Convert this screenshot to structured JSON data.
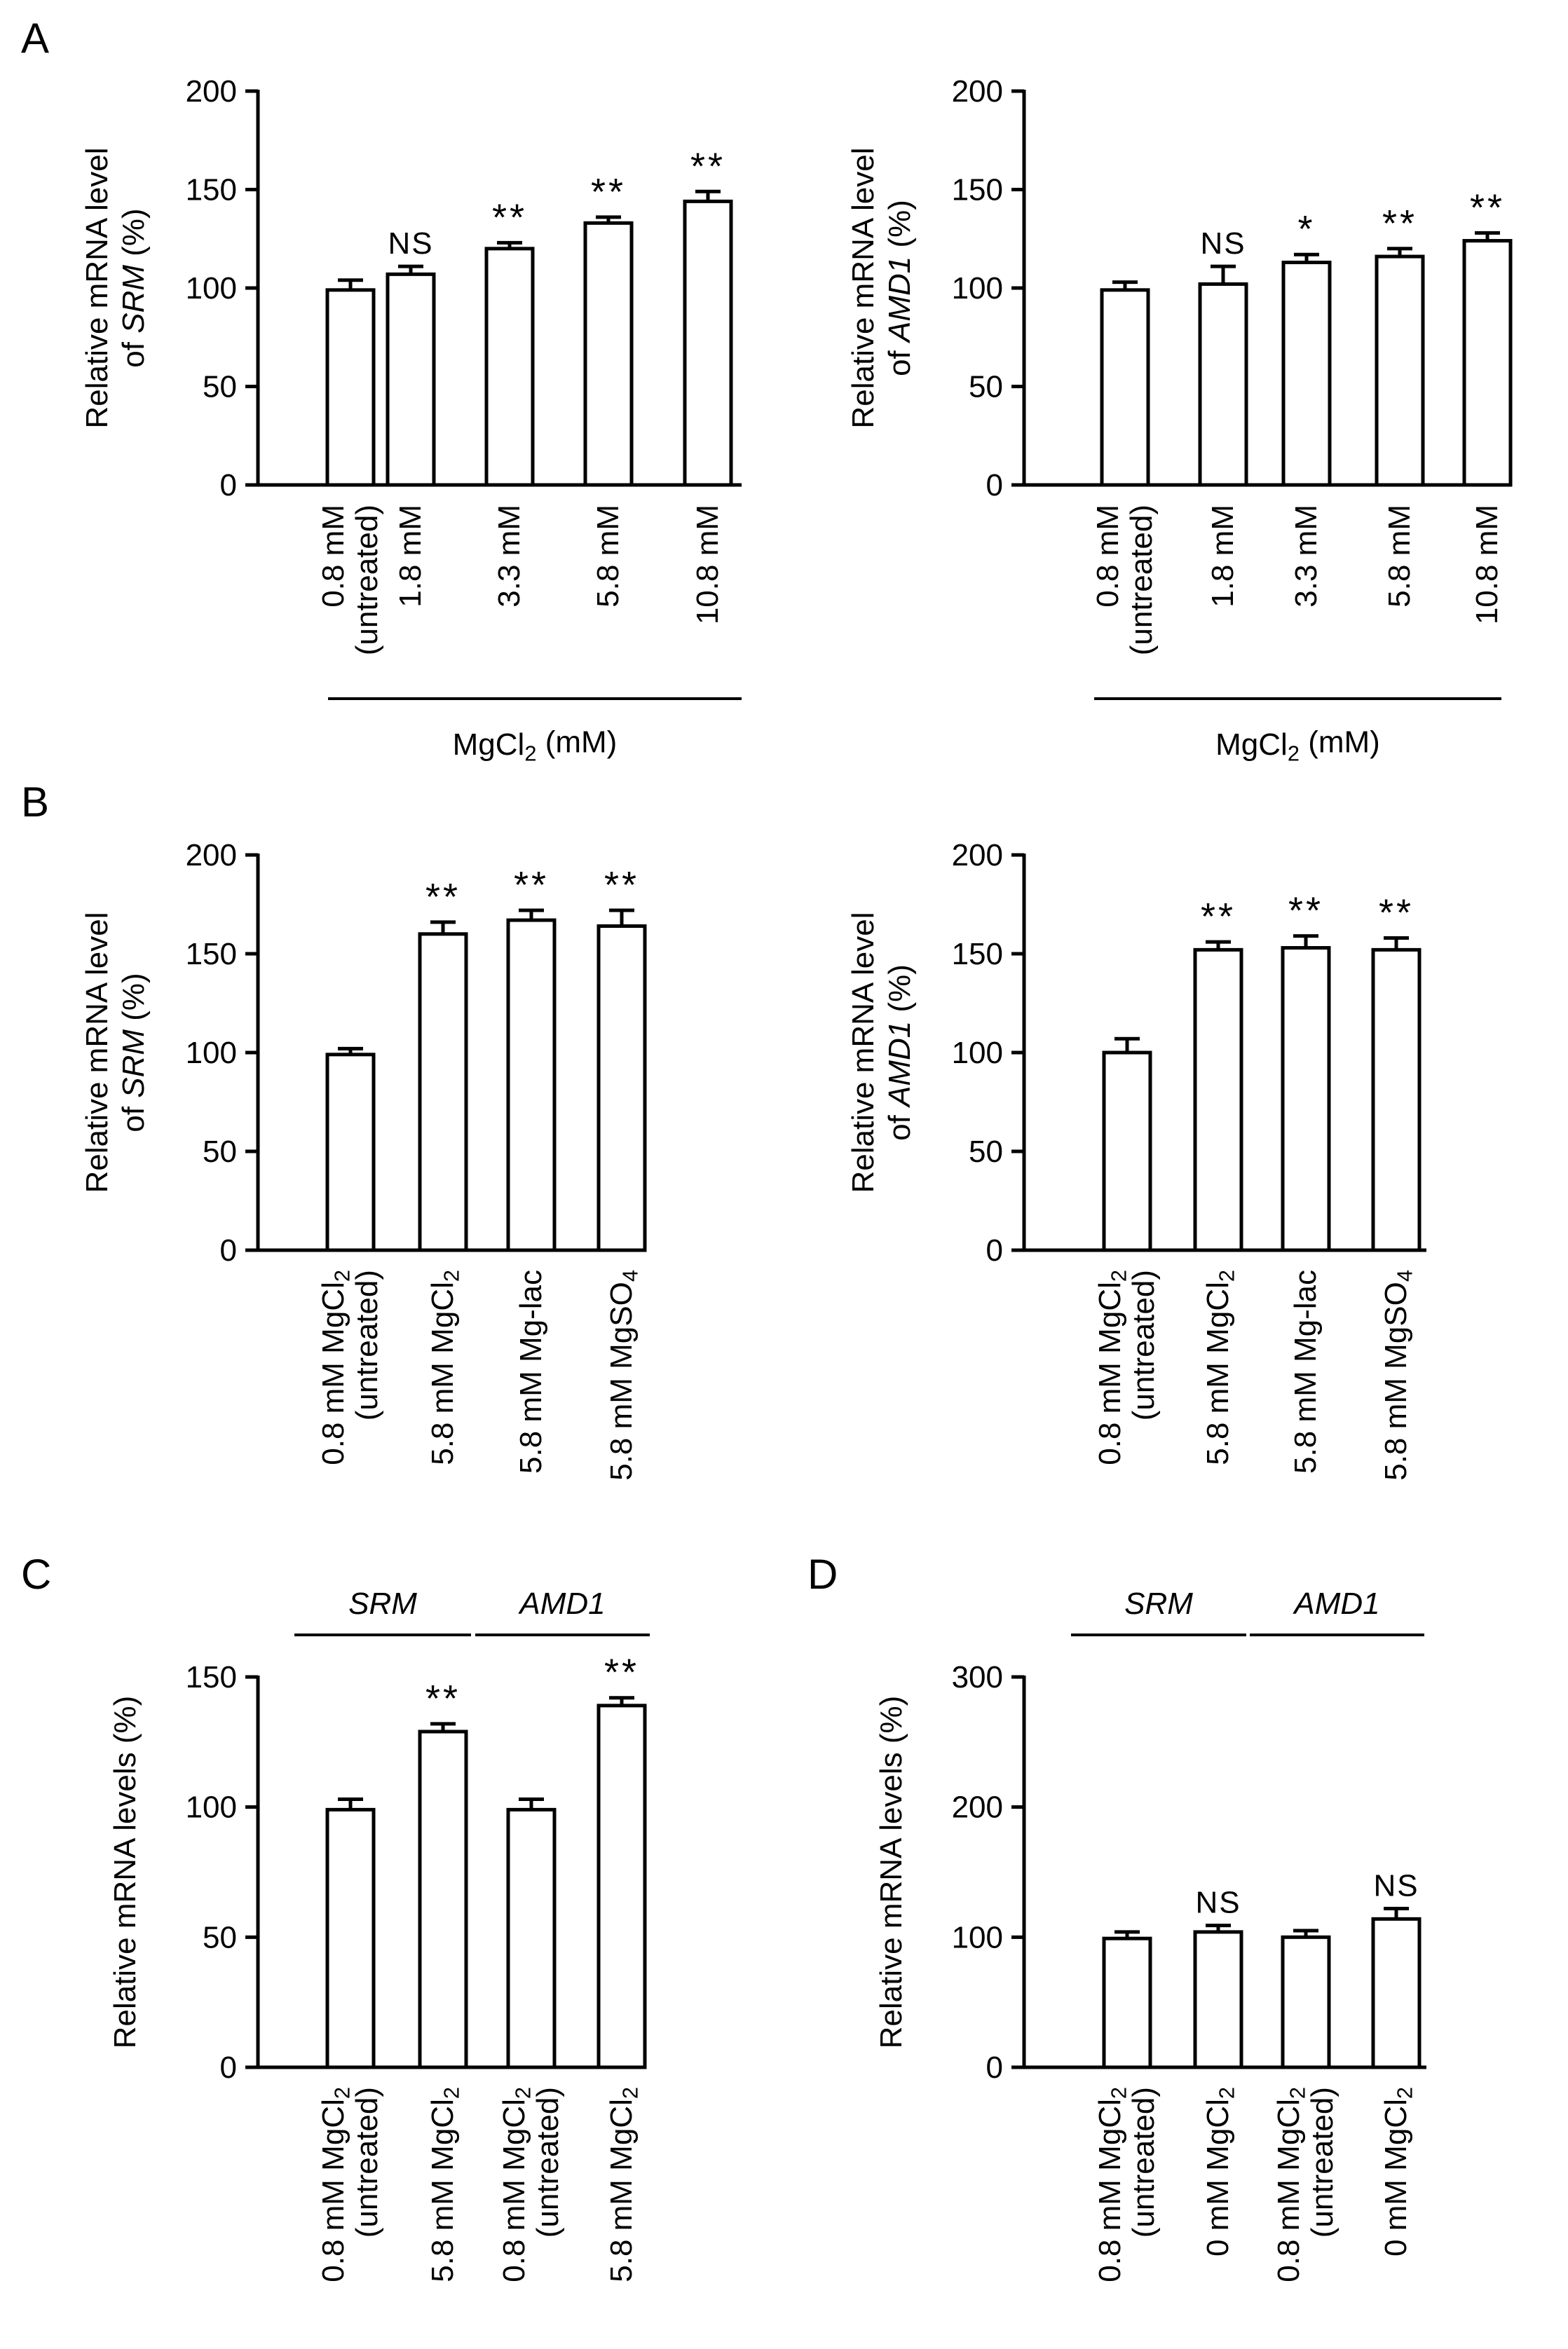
{
  "figure": {
    "panels": [
      {
        "letter": "A"
      },
      {
        "letter": "B"
      },
      {
        "letter": "C"
      },
      {
        "letter": "D"
      }
    ]
  },
  "chart_data": [
    {
      "panel": "A",
      "type": "bar",
      "ylabel_lines": [
        [
          "Relative mRNA level"
        ],
        [
          "of ",
          {
            "t": "SRM",
            "i": true
          },
          " (%)"
        ]
      ],
      "ylim": [
        0,
        200
      ],
      "yticks": [
        0,
        50,
        100,
        150,
        200
      ],
      "categories": [
        [
          "0.8 mM",
          "(untreated)"
        ],
        [
          "1.8 mM"
        ],
        [
          "3.3 mM"
        ],
        [
          "5.8 mM"
        ],
        [
          "10.8 mM"
        ]
      ],
      "values": [
        99,
        107,
        120,
        133,
        144
      ],
      "errors": [
        5,
        4,
        3,
        3,
        5
      ],
      "significance": [
        "",
        "NS",
        "**",
        "**",
        "**"
      ],
      "xgroup_label": [
        {
          "t": "MgCl"
        },
        {
          "t": "2",
          "sub": true
        },
        {
          "t": " (mM)"
        }
      ]
    },
    {
      "panel": "A",
      "type": "bar",
      "ylabel_lines": [
        [
          "Relative mRNA level"
        ],
        [
          "of ",
          {
            "t": "AMD1",
            "i": true
          },
          " (%)"
        ]
      ],
      "ylim": [
        0,
        200
      ],
      "yticks": [
        0,
        50,
        100,
        150,
        200
      ],
      "categories": [
        [
          "0.8 mM",
          "(untreated)"
        ],
        [
          "1.8 mM"
        ],
        [
          "3.3 mM"
        ],
        [
          "5.8 mM"
        ],
        [
          "10.8 mM"
        ]
      ],
      "values": [
        99,
        102,
        113,
        116,
        124
      ],
      "errors": [
        4,
        9,
        4,
        4,
        4
      ],
      "significance": [
        "",
        "NS",
        "*",
        "**",
        "**"
      ],
      "xgroup_label": [
        {
          "t": "MgCl"
        },
        {
          "t": "2",
          "sub": true
        },
        {
          "t": " (mM)"
        }
      ]
    },
    {
      "panel": "B",
      "type": "bar",
      "ylabel_lines": [
        [
          "Relative mRNA level"
        ],
        [
          "of ",
          {
            "t": "SRM",
            "i": true
          },
          " (%)"
        ]
      ],
      "ylim": [
        0,
        200
      ],
      "yticks": [
        0,
        50,
        100,
        150,
        200
      ],
      "categories": [
        [
          [
            {
              "t": "0.8 mM MgCl"
            },
            {
              "t": "2",
              "sub": true
            }
          ],
          [
            {
              "t": "(untreated)"
            }
          ]
        ],
        [
          [
            {
              "t": "5.8 mM MgCl"
            },
            {
              "t": "2",
              "sub": true
            }
          ]
        ],
        [
          [
            {
              "t": "5.8 mM Mg-lac"
            }
          ]
        ],
        [
          [
            {
              "t": "5.8 mM MgSO"
            },
            {
              "t": "4",
              "sub": true
            }
          ]
        ]
      ],
      "values": [
        99,
        160,
        167,
        164
      ],
      "errors": [
        3,
        6,
        5,
        8
      ],
      "significance": [
        "",
        "**",
        "**",
        "**"
      ]
    },
    {
      "panel": "B",
      "type": "bar",
      "ylabel_lines": [
        [
          "Relative mRNA level"
        ],
        [
          "of ",
          {
            "t": "AMD1",
            "i": true
          },
          " (%)"
        ]
      ],
      "ylim": [
        0,
        200
      ],
      "yticks": [
        0,
        50,
        100,
        150,
        200
      ],
      "categories": [
        [
          [
            {
              "t": "0.8 mM MgCl"
            },
            {
              "t": "2",
              "sub": true
            }
          ],
          [
            {
              "t": "(untreated)"
            }
          ]
        ],
        [
          [
            {
              "t": "5.8 mM MgCl"
            },
            {
              "t": "2",
              "sub": true
            }
          ]
        ],
        [
          [
            {
              "t": "5.8 mM Mg-lac"
            }
          ]
        ],
        [
          [
            {
              "t": "5.8 mM MgSO"
            },
            {
              "t": "4",
              "sub": true
            }
          ]
        ]
      ],
      "values": [
        100,
        152,
        153,
        152
      ],
      "errors": [
        7,
        4,
        6,
        6
      ],
      "significance": [
        "",
        "**",
        "**",
        "**"
      ]
    },
    {
      "panel": "C",
      "type": "bar",
      "ylabel_lines": [
        [
          "Relative mRNA levels (%)"
        ]
      ],
      "ylim": [
        0,
        150
      ],
      "yticks": [
        0,
        50,
        100,
        150
      ],
      "categories": [
        [
          [
            {
              "t": "0.8 mM MgCl"
            },
            {
              "t": "2",
              "sub": true
            }
          ],
          [
            {
              "t": "(untreated)"
            }
          ]
        ],
        [
          [
            {
              "t": "5.8 mM MgCl"
            },
            {
              "t": "2",
              "sub": true
            }
          ]
        ],
        [
          [
            {
              "t": "0.8 mM MgCl"
            },
            {
              "t": "2",
              "sub": true
            }
          ],
          [
            {
              "t": "(untreated)"
            }
          ]
        ],
        [
          [
            {
              "t": "5.8 mM MgCl"
            },
            {
              "t": "2",
              "sub": true
            }
          ]
        ]
      ],
      "values": [
        99,
        129,
        99,
        139
      ],
      "errors": [
        4,
        3,
        4,
        3
      ],
      "significance": [
        "",
        "**",
        "",
        "**"
      ],
      "gene_groups": [
        {
          "label": "SRM",
          "bars": [
            0,
            1
          ]
        },
        {
          "label": "AMD1",
          "bars": [
            2,
            3
          ]
        }
      ]
    },
    {
      "panel": "D",
      "type": "bar",
      "ylabel_lines": [
        [
          "Relative mRNA levels (%)"
        ]
      ],
      "ylim": [
        0,
        300
      ],
      "yticks": [
        0,
        100,
        200,
        300
      ],
      "categories": [
        [
          [
            {
              "t": "0.8 mM MgCl"
            },
            {
              "t": "2",
              "sub": true
            }
          ],
          [
            {
              "t": "(untreated)"
            }
          ]
        ],
        [
          [
            {
              "t": "0 mM MgCl"
            },
            {
              "t": "2",
              "sub": true
            }
          ]
        ],
        [
          [
            {
              "t": "0.8 mM MgCl"
            },
            {
              "t": "2",
              "sub": true
            }
          ],
          [
            {
              "t": "(untreated)"
            }
          ]
        ],
        [
          [
            {
              "t": "0 mM MgCl"
            },
            {
              "t": "2",
              "sub": true
            }
          ]
        ]
      ],
      "values": [
        99,
        104,
        100,
        114
      ],
      "errors": [
        5,
        5,
        5,
        8
      ],
      "significance": [
        "",
        "NS",
        "",
        "NS"
      ],
      "gene_groups": [
        {
          "label": "SRM",
          "bars": [
            0,
            1
          ]
        },
        {
          "label": "AMD1",
          "bars": [
            2,
            3
          ]
        }
      ]
    }
  ]
}
